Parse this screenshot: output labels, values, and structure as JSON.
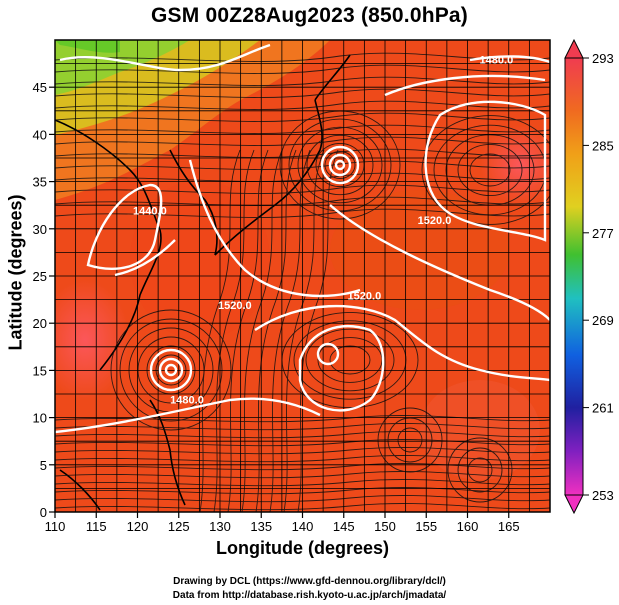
{
  "title": "GSM 00Z28Aug2023 (850.0hPa)",
  "xlabel": "Longitude (degrees)",
  "ylabel": "Latitude  (degrees)",
  "x_ticks": [
    "110",
    "115",
    "120",
    "125",
    "130",
    "135",
    "140",
    "145",
    "150",
    "155",
    "160",
    "165"
  ],
  "y_ticks": [
    "0",
    "5",
    "10",
    "15",
    "20",
    "25",
    "30",
    "35",
    "40",
    "45"
  ],
  "x_range": [
    110,
    170
  ],
  "y_range": [
    0,
    50
  ],
  "colorbar": {
    "min": 253,
    "max": 293,
    "labels": [
      "293",
      "285",
      "277",
      "269",
      "261",
      "253"
    ],
    "colors": [
      "#f0305a",
      "#f05a28",
      "#f0a018",
      "#e8d020",
      "#50c830",
      "#20c8c8",
      "#1070e0",
      "#2020b0",
      "#8020c0",
      "#e830b0"
    ]
  },
  "contours": [
    {
      "label": "1480.0",
      "lon": 163.5,
      "lat": 47.5
    },
    {
      "label": "1440.0",
      "lon": 121.5,
      "lat": 31.5
    },
    {
      "label": "1520.0",
      "lon": 131.8,
      "lat": 21.5
    },
    {
      "label": "1520.0",
      "lon": 156.0,
      "lat": 30.5
    },
    {
      "label": "1520.0",
      "lon": 147.5,
      "lat": 22.5
    },
    {
      "label": "1480.0",
      "lon": 126.0,
      "lat": 11.5
    }
  ],
  "credits": {
    "line1": "Drawing by DCL (https://www.gfd-dennou.org/library/dcl/)",
    "line2": "Data from http://database.rish.kyoto-u.ac.jp/arch/jmadata/"
  }
}
